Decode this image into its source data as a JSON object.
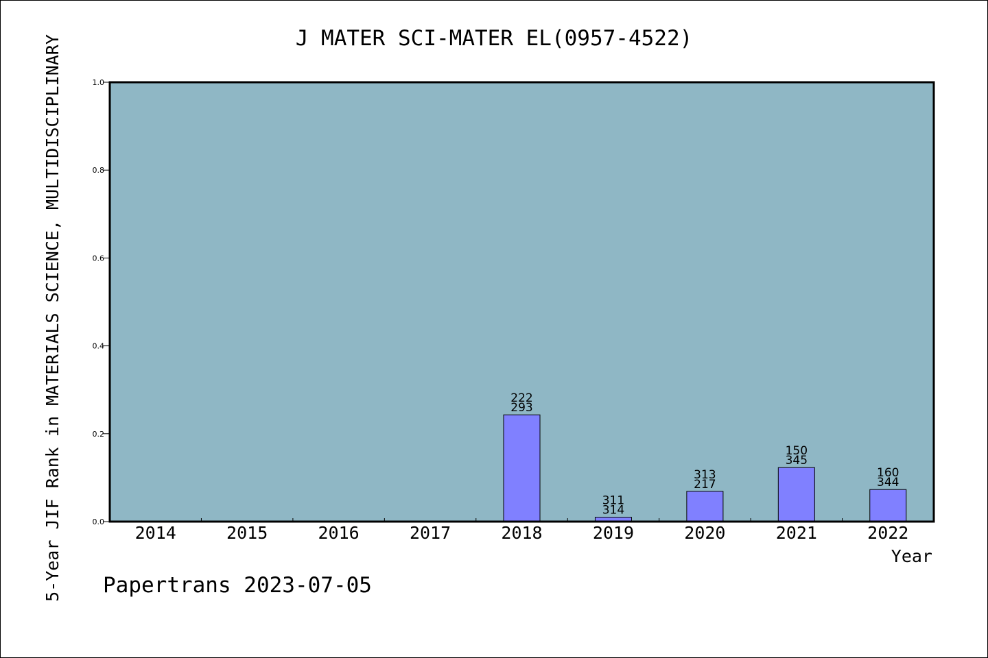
{
  "chart_data": {
    "type": "bar",
    "title": "J MATER SCI-MATER EL(0957-4522)",
    "xlabel": "Year",
    "ylabel": "5-Year JIF Rank in MATERIALS SCIENCE, MULTIDISCIPLINARY",
    "categories": [
      "2014",
      "2015",
      "2016",
      "2017",
      "2018",
      "2019",
      "2020",
      "2021",
      "2022"
    ],
    "values": [
      null,
      null,
      null,
      null,
      0.243,
      0.01,
      0.069,
      0.123,
      0.073
    ],
    "labels_top": [
      "",
      "",
      "",
      "",
      "222",
      "311",
      "313",
      "150",
      "160"
    ],
    "labels_bottom": [
      "",
      "",
      "",
      "",
      "293",
      "314",
      "217",
      "345",
      "344"
    ],
    "ylim": [
      0,
      1.0
    ],
    "yticks": [
      "0.0",
      "0.2",
      "0.4",
      "0.6",
      "0.8",
      "1.0"
    ],
    "ytick_values": [
      0,
      0.2,
      0.4,
      0.6,
      0.8,
      1.0
    ],
    "grid": false,
    "plot_background": "#8fb7c5",
    "bar_color": "#8080ff",
    "footer": "Papertrans 2023-07-05"
  }
}
